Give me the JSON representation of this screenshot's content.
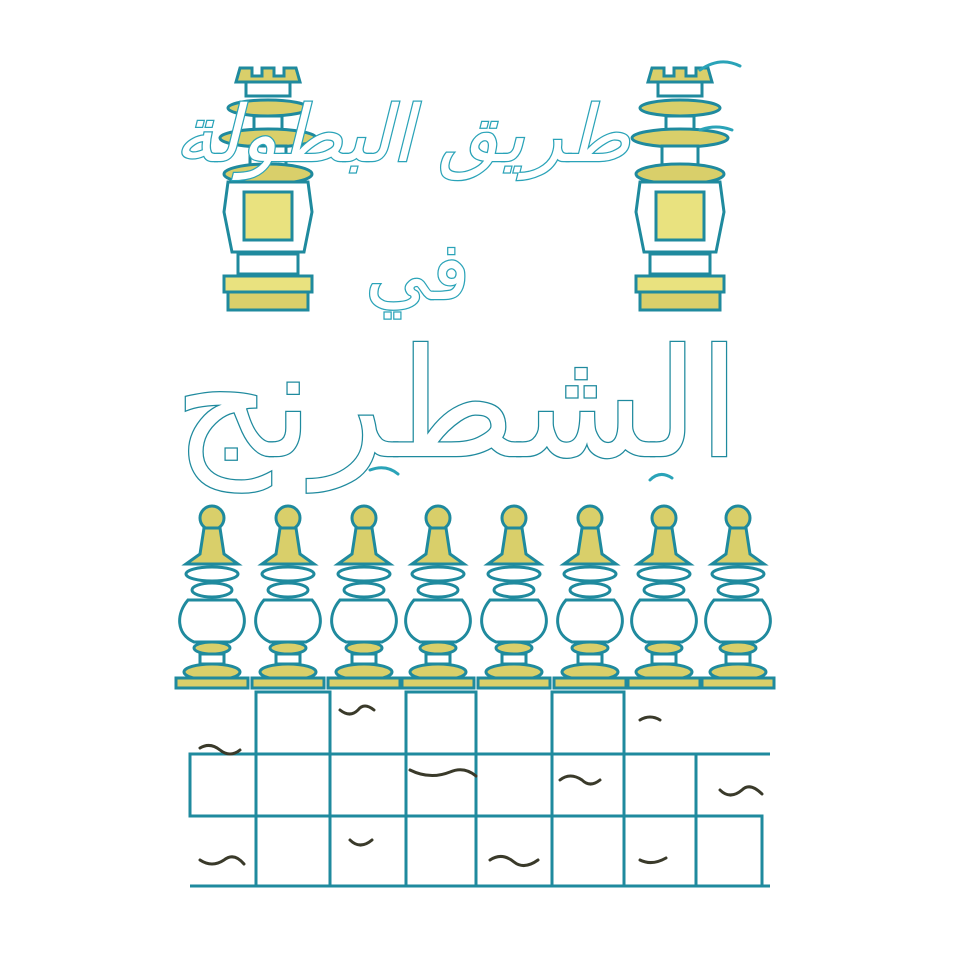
{
  "cover": {
    "title_line1": "طريق البطولة",
    "title_line2": "في",
    "title_line3": "الشطرنج"
  },
  "colors": {
    "outline": "#1f8a9e",
    "accent": "#2aa3b8",
    "gold": "#d9cf6a",
    "paper": "#ffffff",
    "board_dark": "#3a3a2a"
  },
  "icons": [
    "rook-icon",
    "pawn-icon",
    "chessboard"
  ]
}
